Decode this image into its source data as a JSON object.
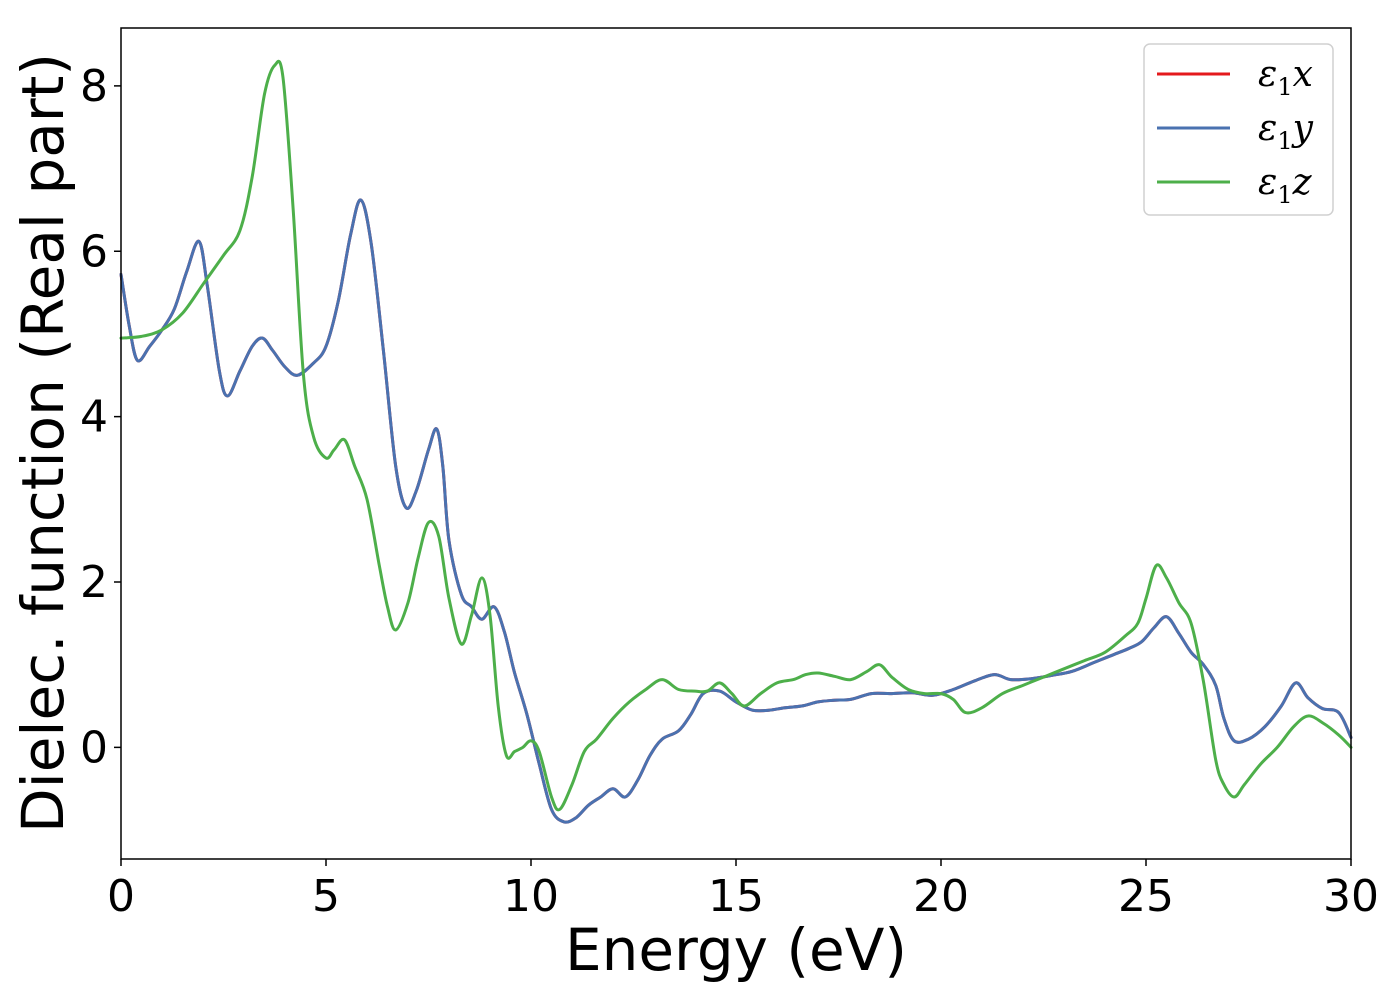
{
  "chart_data": {
    "type": "line",
    "xlabel": "Energy (eV)",
    "ylabel": "Dielec. function (Real part)",
    "xlim": [
      0,
      30
    ],
    "ylim": [
      -1.35,
      8.7
    ],
    "xticks": [
      0,
      5,
      10,
      15,
      20,
      25,
      30
    ],
    "yticks": [
      0,
      2,
      4,
      6,
      8
    ],
    "grid": false,
    "legend_position": "top-right",
    "series": [
      {
        "name": "ε1x",
        "color": "#e41a1c",
        "points": [
          [
            0,
            5.72
          ],
          [
            0.2,
            5.1
          ],
          [
            0.4,
            4.68
          ],
          [
            0.7,
            4.85
          ],
          [
            1.0,
            5.05
          ],
          [
            1.3,
            5.3
          ],
          [
            1.6,
            5.75
          ],
          [
            1.9,
            6.12
          ],
          [
            2.1,
            5.6
          ],
          [
            2.4,
            4.55
          ],
          [
            2.6,
            4.25
          ],
          [
            2.9,
            4.55
          ],
          [
            3.2,
            4.85
          ],
          [
            3.45,
            4.95
          ],
          [
            3.7,
            4.8
          ],
          [
            4.0,
            4.6
          ],
          [
            4.3,
            4.5
          ],
          [
            4.7,
            4.65
          ],
          [
            5.0,
            4.85
          ],
          [
            5.3,
            5.4
          ],
          [
            5.6,
            6.2
          ],
          [
            5.85,
            6.62
          ],
          [
            6.1,
            6.1
          ],
          [
            6.4,
            4.8
          ],
          [
            6.7,
            3.4
          ],
          [
            6.95,
            2.9
          ],
          [
            7.2,
            3.1
          ],
          [
            7.5,
            3.6
          ],
          [
            7.7,
            3.85
          ],
          [
            7.85,
            3.4
          ],
          [
            8.0,
            2.5
          ],
          [
            8.3,
            1.85
          ],
          [
            8.55,
            1.7
          ],
          [
            8.8,
            1.55
          ],
          [
            9.1,
            1.7
          ],
          [
            9.35,
            1.4
          ],
          [
            9.6,
            0.9
          ],
          [
            9.9,
            0.4
          ],
          [
            10.2,
            -0.2
          ],
          [
            10.5,
            -0.75
          ],
          [
            10.8,
            -0.9
          ],
          [
            11.1,
            -0.85
          ],
          [
            11.4,
            -0.7
          ],
          [
            11.7,
            -0.6
          ],
          [
            12.0,
            -0.5
          ],
          [
            12.3,
            -0.6
          ],
          [
            12.6,
            -0.4
          ],
          [
            12.9,
            -0.1
          ],
          [
            13.2,
            0.1
          ],
          [
            13.6,
            0.2
          ],
          [
            13.9,
            0.4
          ],
          [
            14.2,
            0.65
          ],
          [
            14.6,
            0.68
          ],
          [
            15.0,
            0.55
          ],
          [
            15.4,
            0.45
          ],
          [
            15.8,
            0.45
          ],
          [
            16.2,
            0.48
          ],
          [
            16.6,
            0.5
          ],
          [
            17.0,
            0.55
          ],
          [
            17.4,
            0.57
          ],
          [
            17.8,
            0.58
          ],
          [
            18.3,
            0.65
          ],
          [
            18.8,
            0.65
          ],
          [
            19.3,
            0.66
          ],
          [
            19.8,
            0.63
          ],
          [
            20.3,
            0.7
          ],
          [
            20.8,
            0.8
          ],
          [
            21.3,
            0.88
          ],
          [
            21.7,
            0.82
          ],
          [
            22.2,
            0.83
          ],
          [
            22.7,
            0.87
          ],
          [
            23.2,
            0.92
          ],
          [
            23.7,
            1.02
          ],
          [
            24.2,
            1.12
          ],
          [
            24.6,
            1.2
          ],
          [
            24.9,
            1.28
          ],
          [
            25.2,
            1.45
          ],
          [
            25.5,
            1.58
          ],
          [
            25.8,
            1.38
          ],
          [
            26.1,
            1.15
          ],
          [
            26.4,
            1.0
          ],
          [
            26.7,
            0.75
          ],
          [
            26.9,
            0.35
          ],
          [
            27.15,
            0.08
          ],
          [
            27.5,
            0.1
          ],
          [
            27.9,
            0.25
          ],
          [
            28.3,
            0.5
          ],
          [
            28.65,
            0.78
          ],
          [
            28.95,
            0.6
          ],
          [
            29.3,
            0.47
          ],
          [
            29.7,
            0.42
          ],
          [
            30.0,
            0.12
          ]
        ]
      },
      {
        "name": "ε1y",
        "color": "#4a72b0",
        "points": [
          [
            0,
            5.72
          ],
          [
            0.2,
            5.1
          ],
          [
            0.4,
            4.68
          ],
          [
            0.7,
            4.85
          ],
          [
            1.0,
            5.05
          ],
          [
            1.3,
            5.3
          ],
          [
            1.6,
            5.75
          ],
          [
            1.9,
            6.12
          ],
          [
            2.1,
            5.6
          ],
          [
            2.4,
            4.55
          ],
          [
            2.6,
            4.25
          ],
          [
            2.9,
            4.55
          ],
          [
            3.2,
            4.85
          ],
          [
            3.45,
            4.95
          ],
          [
            3.7,
            4.8
          ],
          [
            4.0,
            4.6
          ],
          [
            4.3,
            4.5
          ],
          [
            4.7,
            4.65
          ],
          [
            5.0,
            4.85
          ],
          [
            5.3,
            5.4
          ],
          [
            5.6,
            6.2
          ],
          [
            5.85,
            6.62
          ],
          [
            6.1,
            6.1
          ],
          [
            6.4,
            4.8
          ],
          [
            6.7,
            3.4
          ],
          [
            6.95,
            2.9
          ],
          [
            7.2,
            3.1
          ],
          [
            7.5,
            3.6
          ],
          [
            7.7,
            3.85
          ],
          [
            7.85,
            3.4
          ],
          [
            8.0,
            2.5
          ],
          [
            8.3,
            1.85
          ],
          [
            8.55,
            1.7
          ],
          [
            8.8,
            1.55
          ],
          [
            9.1,
            1.7
          ],
          [
            9.35,
            1.4
          ],
          [
            9.6,
            0.9
          ],
          [
            9.9,
            0.4
          ],
          [
            10.2,
            -0.2
          ],
          [
            10.5,
            -0.75
          ],
          [
            10.8,
            -0.9
          ],
          [
            11.1,
            -0.85
          ],
          [
            11.4,
            -0.7
          ],
          [
            11.7,
            -0.6
          ],
          [
            12.0,
            -0.5
          ],
          [
            12.3,
            -0.6
          ],
          [
            12.6,
            -0.4
          ],
          [
            12.9,
            -0.1
          ],
          [
            13.2,
            0.1
          ],
          [
            13.6,
            0.2
          ],
          [
            13.9,
            0.4
          ],
          [
            14.2,
            0.65
          ],
          [
            14.6,
            0.68
          ],
          [
            15.0,
            0.55
          ],
          [
            15.4,
            0.45
          ],
          [
            15.8,
            0.45
          ],
          [
            16.2,
            0.48
          ],
          [
            16.6,
            0.5
          ],
          [
            17.0,
            0.55
          ],
          [
            17.4,
            0.57
          ],
          [
            17.8,
            0.58
          ],
          [
            18.3,
            0.65
          ],
          [
            18.8,
            0.65
          ],
          [
            19.3,
            0.66
          ],
          [
            19.8,
            0.63
          ],
          [
            20.3,
            0.7
          ],
          [
            20.8,
            0.8
          ],
          [
            21.3,
            0.88
          ],
          [
            21.7,
            0.82
          ],
          [
            22.2,
            0.83
          ],
          [
            22.7,
            0.87
          ],
          [
            23.2,
            0.92
          ],
          [
            23.7,
            1.02
          ],
          [
            24.2,
            1.12
          ],
          [
            24.6,
            1.2
          ],
          [
            24.9,
            1.28
          ],
          [
            25.2,
            1.45
          ],
          [
            25.5,
            1.58
          ],
          [
            25.8,
            1.38
          ],
          [
            26.1,
            1.15
          ],
          [
            26.4,
            1.0
          ],
          [
            26.7,
            0.75
          ],
          [
            26.9,
            0.35
          ],
          [
            27.15,
            0.08
          ],
          [
            27.5,
            0.1
          ],
          [
            27.9,
            0.25
          ],
          [
            28.3,
            0.5
          ],
          [
            28.65,
            0.78
          ],
          [
            28.95,
            0.6
          ],
          [
            29.3,
            0.47
          ],
          [
            29.7,
            0.42
          ],
          [
            30.0,
            0.12
          ]
        ]
      },
      {
        "name": "ε1z",
        "color": "#4daf4a",
        "points": [
          [
            0,
            4.95
          ],
          [
            0.5,
            4.97
          ],
          [
            1.0,
            5.05
          ],
          [
            1.5,
            5.25
          ],
          [
            2.0,
            5.6
          ],
          [
            2.5,
            5.95
          ],
          [
            2.9,
            6.25
          ],
          [
            3.2,
            6.9
          ],
          [
            3.5,
            7.9
          ],
          [
            3.75,
            8.25
          ],
          [
            3.95,
            8.1
          ],
          [
            4.2,
            6.5
          ],
          [
            4.45,
            4.5
          ],
          [
            4.7,
            3.75
          ],
          [
            5.0,
            3.5
          ],
          [
            5.2,
            3.6
          ],
          [
            5.45,
            3.72
          ],
          [
            5.7,
            3.4
          ],
          [
            6.0,
            3.0
          ],
          [
            6.3,
            2.2
          ],
          [
            6.5,
            1.7
          ],
          [
            6.7,
            1.42
          ],
          [
            7.0,
            1.75
          ],
          [
            7.25,
            2.3
          ],
          [
            7.5,
            2.72
          ],
          [
            7.75,
            2.55
          ],
          [
            8.0,
            1.8
          ],
          [
            8.3,
            1.25
          ],
          [
            8.55,
            1.6
          ],
          [
            8.8,
            2.05
          ],
          [
            9.0,
            1.6
          ],
          [
            9.2,
            0.5
          ],
          [
            9.4,
            -0.1
          ],
          [
            9.6,
            -0.05
          ],
          [
            9.8,
            0.0
          ],
          [
            10.0,
            0.08
          ],
          [
            10.2,
            -0.05
          ],
          [
            10.5,
            -0.6
          ],
          [
            10.7,
            -0.75
          ],
          [
            11.0,
            -0.45
          ],
          [
            11.3,
            -0.05
          ],
          [
            11.6,
            0.1
          ],
          [
            12.0,
            0.35
          ],
          [
            12.4,
            0.55
          ],
          [
            12.8,
            0.7
          ],
          [
            13.2,
            0.82
          ],
          [
            13.6,
            0.7
          ],
          [
            14.0,
            0.68
          ],
          [
            14.3,
            0.68
          ],
          [
            14.6,
            0.78
          ],
          [
            14.9,
            0.65
          ],
          [
            15.2,
            0.5
          ],
          [
            15.6,
            0.65
          ],
          [
            16.0,
            0.78
          ],
          [
            16.4,
            0.82
          ],
          [
            16.7,
            0.88
          ],
          [
            17.0,
            0.9
          ],
          [
            17.4,
            0.86
          ],
          [
            17.8,
            0.82
          ],
          [
            18.2,
            0.92
          ],
          [
            18.5,
            1.0
          ],
          [
            18.8,
            0.85
          ],
          [
            19.2,
            0.7
          ],
          [
            19.6,
            0.65
          ],
          [
            20.0,
            0.65
          ],
          [
            20.3,
            0.58
          ],
          [
            20.6,
            0.42
          ],
          [
            21.0,
            0.48
          ],
          [
            21.5,
            0.65
          ],
          [
            22.0,
            0.75
          ],
          [
            22.5,
            0.85
          ],
          [
            23.0,
            0.95
          ],
          [
            23.5,
            1.05
          ],
          [
            24.0,
            1.15
          ],
          [
            24.5,
            1.35
          ],
          [
            24.8,
            1.5
          ],
          [
            25.0,
            1.8
          ],
          [
            25.25,
            2.2
          ],
          [
            25.5,
            2.05
          ],
          [
            25.8,
            1.75
          ],
          [
            26.1,
            1.5
          ],
          [
            26.4,
            0.8
          ],
          [
            26.7,
            -0.15
          ],
          [
            26.9,
            -0.45
          ],
          [
            27.15,
            -0.6
          ],
          [
            27.4,
            -0.45
          ],
          [
            27.8,
            -0.2
          ],
          [
            28.2,
            0.0
          ],
          [
            28.6,
            0.25
          ],
          [
            28.95,
            0.38
          ],
          [
            29.3,
            0.3
          ],
          [
            29.7,
            0.15
          ],
          [
            30.0,
            0.0
          ]
        ]
      }
    ]
  }
}
